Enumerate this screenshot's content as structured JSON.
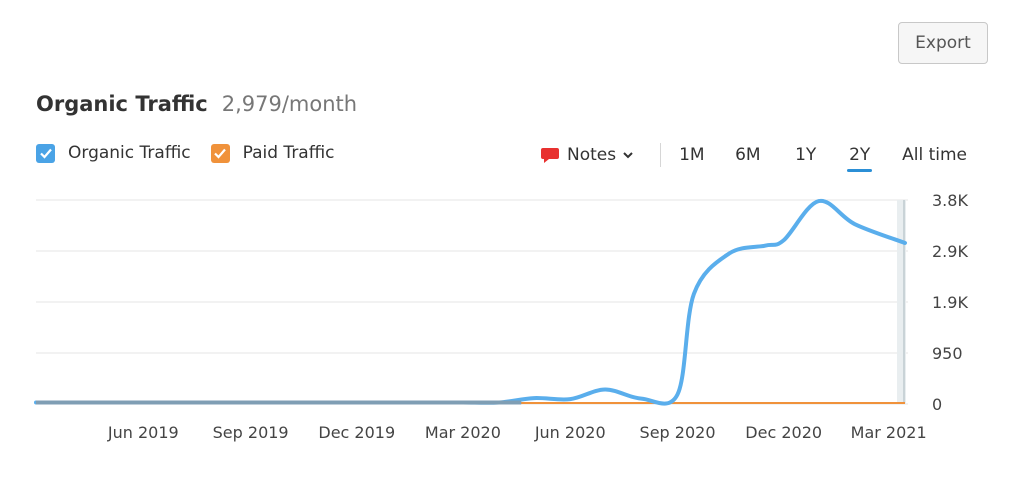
{
  "toolbar": {
    "export_label": "Export"
  },
  "header": {
    "title": "Organic Traffic",
    "value": "2,979/month"
  },
  "legend": [
    {
      "label": "Organic Traffic",
      "color": "#4aa3e6",
      "checked": true
    },
    {
      "label": "Paid Traffic",
      "color": "#f0923b",
      "checked": true
    }
  ],
  "controls": {
    "notes_label": "Notes",
    "periods": [
      "1M",
      "6M",
      "1Y",
      "2Y",
      "All time"
    ],
    "active_period": "2Y"
  },
  "chart_data": {
    "type": "line",
    "x_start": "2019-03-01",
    "x_end": "2021-03-15",
    "x_tick_labels": [
      "Jun 2019",
      "Sep 2019",
      "Dec 2019",
      "Mar 2020",
      "Jun 2020",
      "Sep 2020",
      "Dec 2020",
      "Mar 2021"
    ],
    "x_tick_dates": [
      "2019-06-01",
      "2019-09-01",
      "2019-12-01",
      "2020-03-01",
      "2020-06-01",
      "2020-09-01",
      "2020-12-01",
      "2021-03-01"
    ],
    "y_tick_labels": [
      "0",
      "950",
      "1.9K",
      "2.9K",
      "3.8K"
    ],
    "y_tick_values": [
      0,
      950,
      1900,
      2850,
      3800
    ],
    "ylim": [
      0,
      3800
    ],
    "grid": true,
    "series": [
      {
        "name": "Organic Traffic",
        "color": "#5aaeec",
        "points": [
          [
            "2019-03-01",
            0
          ],
          [
            "2019-06-01",
            0
          ],
          [
            "2019-09-01",
            0
          ],
          [
            "2019-12-01",
            0
          ],
          [
            "2020-02-01",
            10
          ],
          [
            "2020-03-01",
            20
          ],
          [
            "2020-04-01",
            0
          ],
          [
            "2020-05-01",
            110
          ],
          [
            "2020-06-01",
            90
          ],
          [
            "2020-07-01",
            270
          ],
          [
            "2020-08-01",
            100
          ],
          [
            "2020-09-01",
            180
          ],
          [
            "2020-09-15",
            2050
          ],
          [
            "2020-10-15",
            2800
          ],
          [
            "2020-11-15",
            2950
          ],
          [
            "2020-12-01",
            3050
          ],
          [
            "2020-12-31",
            3780
          ],
          [
            "2021-01-31",
            3350
          ],
          [
            "2021-03-15",
            3000
          ]
        ]
      },
      {
        "name": "Paid Traffic",
        "color": "#f0923b",
        "points": [
          [
            "2019-03-01",
            0
          ],
          [
            "2021-03-15",
            0
          ]
        ]
      }
    ]
  }
}
